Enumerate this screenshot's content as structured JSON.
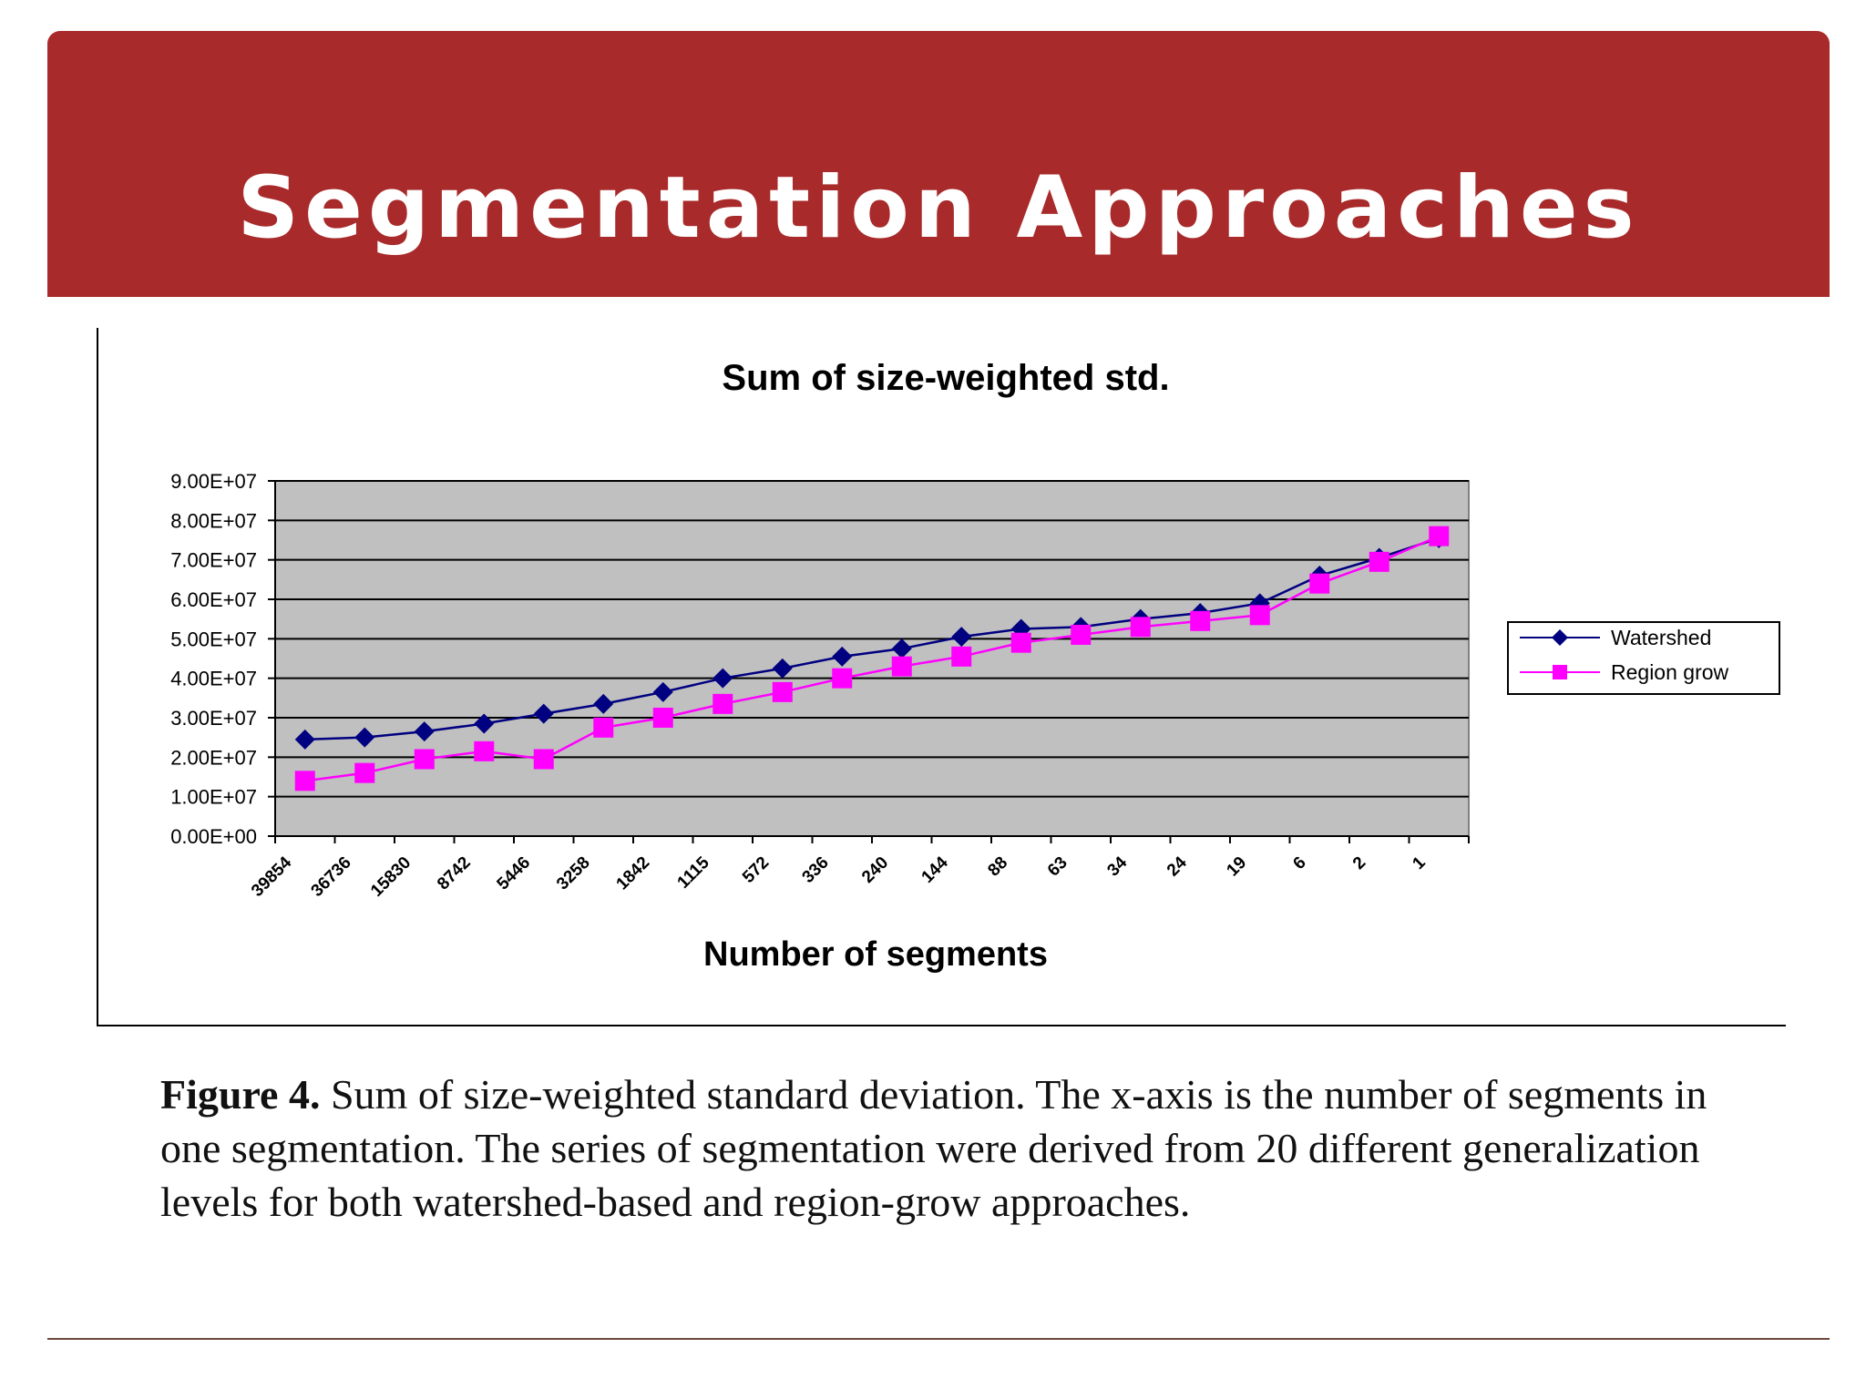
{
  "slide": {
    "title": "Segmentation Approaches"
  },
  "caption": {
    "label": "Figure 4.",
    "text": " Sum of size-weighted standard deviation. The x-axis is the number of segments in one segmentation. The series of segmentation were derived from 20 different generalization levels for both watershed-based and region-grow approaches."
  },
  "chart_data": {
    "type": "line",
    "title": "Sum of size-weighted std.",
    "xlabel": "Number of segments",
    "ylabel": "",
    "categories": [
      "39854",
      "36736",
      "15830",
      "8742",
      "5446",
      "3258",
      "1842",
      "1115",
      "572",
      "336",
      "240",
      "144",
      "88",
      "63",
      "34",
      "24",
      "19",
      "6",
      "2",
      "1"
    ],
    "ylim": [
      0,
      90000000
    ],
    "yticks": [
      "0.00E+00",
      "1.00E+07",
      "2.00E+07",
      "3.00E+07",
      "4.00E+07",
      "5.00E+07",
      "6.00E+07",
      "7.00E+07",
      "8.00E+07",
      "9.00E+07"
    ],
    "ytick_values": [
      0,
      10000000,
      20000000,
      30000000,
      40000000,
      50000000,
      60000000,
      70000000,
      80000000,
      90000000
    ],
    "grid": true,
    "legend_position": "right",
    "series": [
      {
        "name": "Watershed",
        "color": "#000080",
        "marker": "diamond",
        "values": [
          24500000,
          25000000,
          26500000,
          28500000,
          31000000,
          33500000,
          36500000,
          40000000,
          42500000,
          45500000,
          47500000,
          50500000,
          52500000,
          53000000,
          55000000,
          56500000,
          59000000,
          66000000,
          70500000,
          75500000
        ]
      },
      {
        "name": "Region grow",
        "color": "#ff00ff",
        "marker": "square",
        "values": [
          14000000,
          16000000,
          19500000,
          21500000,
          19500000,
          27500000,
          30000000,
          33500000,
          36500000,
          40000000,
          43000000,
          45500000,
          49000000,
          51000000,
          53000000,
          54500000,
          56000000,
          64000000,
          69500000,
          76000000
        ]
      }
    ]
  }
}
